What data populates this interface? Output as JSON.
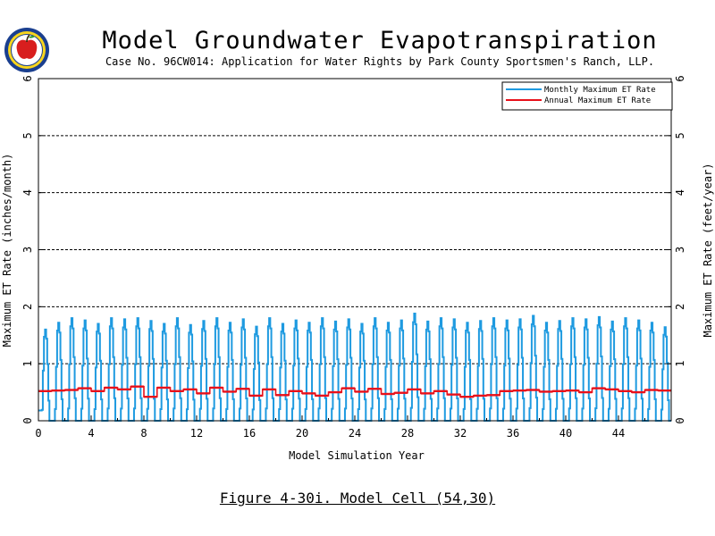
{
  "header": {
    "title": "Model Groundwater Evapotranspiration",
    "subtitle": "Case No. 96CW014: Application for Water Rights by Park County Sportsmen's Ranch, LLP."
  },
  "caption": "Figure 4-30i.  Model Cell (54,30)",
  "logo": {
    "icon": "apple-seal-icon"
  },
  "colors": {
    "monthly": "#1e9ae0",
    "annual": "#e8101a",
    "frame": "#000000"
  },
  "chart_data": {
    "type": "line",
    "title": "Model Groundwater Evapotranspiration",
    "xlabel": "Model Simulation Year",
    "ylabel_left": "Maximum ET Rate  (inches/month)",
    "ylabel_right": "Maximum ET Rate  (feet/year)",
    "xlim": [
      0,
      48
    ],
    "ylim": [
      0,
      6
    ],
    "x_ticks": [
      "0",
      "4",
      "8",
      "12",
      "16",
      "20",
      "24",
      "28",
      "32",
      "36",
      "40",
      "44"
    ],
    "y_ticks": [
      "0",
      "1",
      "2",
      "3",
      "4",
      "5",
      "6"
    ],
    "y_ticks_right": [
      "0",
      "1",
      "2",
      "3",
      "4",
      "5",
      "6"
    ],
    "grid": "horizontal dashed",
    "legend_position": "top-right",
    "series": [
      {
        "name": "Monthly Maximum ET Rate",
        "unit": "inches/month",
        "pattern": "seasonal monthly cycle; zero in winter months, summer peaks per year",
        "annual_peaks": [
          1.6,
          1.72,
          1.8,
          1.76,
          1.7,
          1.8,
          1.78,
          1.8,
          1.75,
          1.7,
          1.8,
          1.68,
          1.75,
          1.8,
          1.72,
          1.78,
          1.65,
          1.8,
          1.7,
          1.76,
          1.72,
          1.8,
          1.74,
          1.78,
          1.7,
          1.8,
          1.72,
          1.76,
          1.88,
          1.74,
          1.8,
          1.78,
          1.72,
          1.75,
          1.8,
          1.76,
          1.78,
          1.84,
          1.72,
          1.75,
          1.8,
          1.78,
          1.82,
          1.74,
          1.8,
          1.76,
          1.72,
          1.64
        ]
      },
      {
        "name": "Annual Maximum ET Rate",
        "unit": "feet/year",
        "values": [
          0.52,
          0.53,
          0.54,
          0.57,
          0.52,
          0.58,
          0.55,
          0.6,
          0.42,
          0.58,
          0.52,
          0.55,
          0.48,
          0.58,
          0.51,
          0.56,
          0.44,
          0.55,
          0.45,
          0.52,
          0.48,
          0.44,
          0.5,
          0.57,
          0.51,
          0.56,
          0.47,
          0.49,
          0.55,
          0.48,
          0.52,
          0.46,
          0.42,
          0.44,
          0.45,
          0.52,
          0.53,
          0.54,
          0.51,
          0.52,
          0.53,
          0.5,
          0.57,
          0.55,
          0.52,
          0.5,
          0.54,
          0.53
        ]
      }
    ]
  }
}
